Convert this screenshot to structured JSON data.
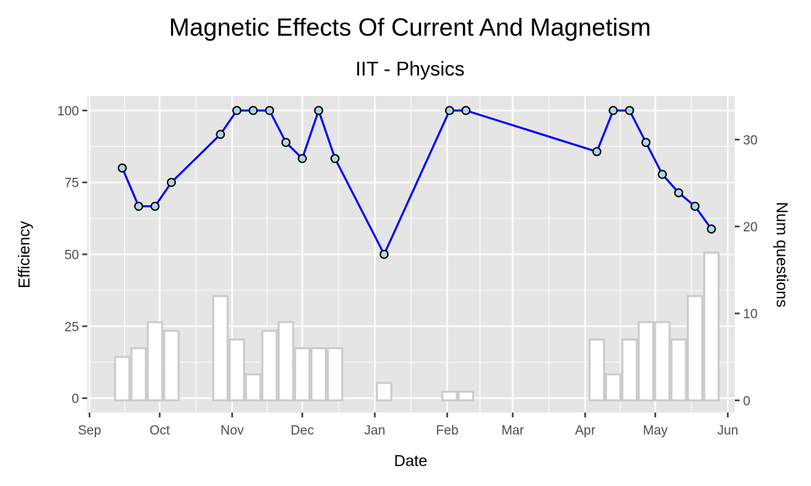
{
  "chart_data": {
    "type": "line",
    "title": "Magnetic Effects Of Current And Magnetism",
    "subtitle": "IIT - Physics",
    "xlabel": "Date",
    "ylabel": "Efficiency",
    "y2label": "Num questions",
    "x_ticks": [
      "Sep",
      "Oct",
      "Nov",
      "Dec",
      "Jan",
      "Feb",
      "Mar",
      "Apr",
      "May",
      "Jun"
    ],
    "y_ticks": [
      "0",
      "25",
      "50",
      "75",
      "100"
    ],
    "y2_ticks": [
      "0",
      "10",
      "20",
      "30"
    ],
    "xlim": [
      "2021-08-31",
      "2022-06-04"
    ],
    "ylim": [
      -5,
      105
    ],
    "y2lim": [
      -1.4,
      35
    ],
    "grid": true,
    "series": [
      {
        "type": "line",
        "color": "#0000ff",
        "marker_fill": "#add8e6",
        "points": [
          {
            "x": "2021-09-15",
            "y": 80
          },
          {
            "x": "2021-09-22",
            "y": 66.7
          },
          {
            "x": "2021-09-29",
            "y": 66.7
          },
          {
            "x": "2021-10-06",
            "y": 75
          },
          {
            "x": "2021-10-27",
            "y": 91.7
          },
          {
            "x": "2021-11-03",
            "y": 100
          },
          {
            "x": "2021-11-10",
            "y": 100
          },
          {
            "x": "2021-11-17",
            "y": 100
          },
          {
            "x": "2021-11-24",
            "y": 88.9
          },
          {
            "x": "2021-12-01",
            "y": 83.3
          },
          {
            "x": "2021-12-08",
            "y": 100
          },
          {
            "x": "2021-12-15",
            "y": 83.3
          },
          {
            "x": "2022-01-05",
            "y": 50
          },
          {
            "x": "2022-02-02",
            "y": 100
          },
          {
            "x": "2022-02-09",
            "y": 100
          },
          {
            "x": "2022-04-06",
            "y": 85.7
          },
          {
            "x": "2022-04-13",
            "y": 100
          },
          {
            "x": "2022-04-20",
            "y": 100
          },
          {
            "x": "2022-04-27",
            "y": 88.9
          },
          {
            "x": "2022-05-04",
            "y": 77.8
          },
          {
            "x": "2022-05-11",
            "y": 71.4
          },
          {
            "x": "2022-05-18",
            "y": 66.7
          },
          {
            "x": "2022-05-25",
            "y": 58.8
          }
        ]
      },
      {
        "type": "bar",
        "axis": "right",
        "fill": "#ffffff",
        "stroke": "#cccccc",
        "points": [
          {
            "x": "2021-09-15",
            "y": 5
          },
          {
            "x": "2021-09-22",
            "y": 6
          },
          {
            "x": "2021-09-29",
            "y": 9
          },
          {
            "x": "2021-10-06",
            "y": 8
          },
          {
            "x": "2021-10-27",
            "y": 12
          },
          {
            "x": "2021-11-03",
            "y": 7
          },
          {
            "x": "2021-11-10",
            "y": 3
          },
          {
            "x": "2021-11-17",
            "y": 8
          },
          {
            "x": "2021-11-24",
            "y": 9
          },
          {
            "x": "2021-12-01",
            "y": 6
          },
          {
            "x": "2021-12-08",
            "y": 6
          },
          {
            "x": "2021-12-15",
            "y": 6
          },
          {
            "x": "2022-01-05",
            "y": 2
          },
          {
            "x": "2022-02-02",
            "y": 1
          },
          {
            "x": "2022-02-09",
            "y": 1
          },
          {
            "x": "2022-04-06",
            "y": 7
          },
          {
            "x": "2022-04-13",
            "y": 3
          },
          {
            "x": "2022-04-20",
            "y": 7
          },
          {
            "x": "2022-04-27",
            "y": 9
          },
          {
            "x": "2022-05-04",
            "y": 9
          },
          {
            "x": "2022-05-11",
            "y": 7
          },
          {
            "x": "2022-05-18",
            "y": 12
          },
          {
            "x": "2022-05-25",
            "y": 17
          }
        ]
      }
    ],
    "colors": {
      "panel_background": "#e5e5e5",
      "grid": "#ffffff",
      "line": "#0000ff",
      "point_fill": "#add8e6",
      "bar_stroke": "#cccccc"
    }
  }
}
